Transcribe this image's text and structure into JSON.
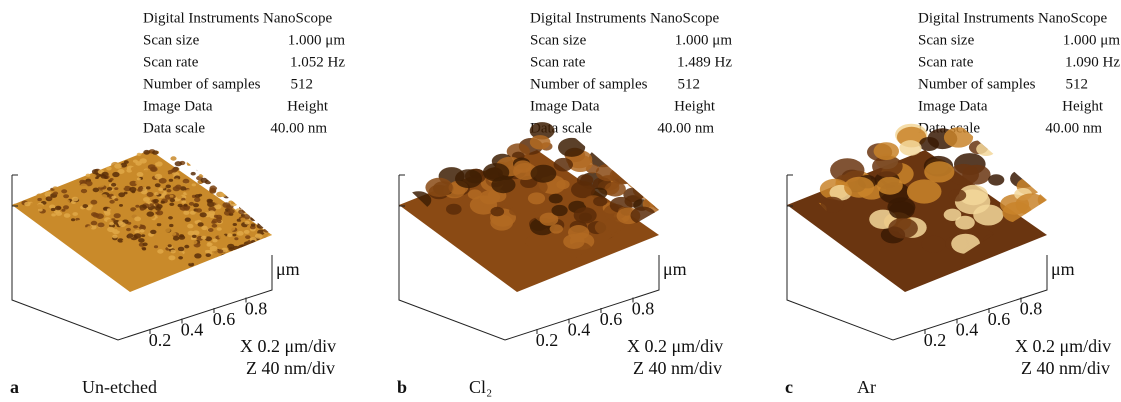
{
  "panels": [
    {
      "letter": "a",
      "caption": "Un-etched",
      "instrument": "Digital Instruments NanoScope",
      "rows": [
        {
          "label": "Scan size",
          "value": "1.000 μm"
        },
        {
          "label": "Scan rate",
          "value": "1.052 Hz"
        },
        {
          "label": "Number of samples",
          "value": "512"
        },
        {
          "label": "Image Data",
          "value": "Height"
        },
        {
          "label": "Data scale",
          "value": "40.00 nm"
        }
      ],
      "axis_ticks": [
        "0.2",
        "0.4",
        "0.6",
        "0.8"
      ],
      "unit": "μm",
      "x_scale": "X 0.2 μm/div",
      "z_scale": "Z  40 nm/div"
    },
    {
      "letter": "b",
      "caption": "Cl₂",
      "instrument": "Digital Instruments NanoScope",
      "rows": [
        {
          "label": "Scan size",
          "value": "1.000 μm"
        },
        {
          "label": "Scan rate",
          "value": "1.489 Hz"
        },
        {
          "label": "Number of samples",
          "value": "512"
        },
        {
          "label": "Image Data",
          "value": "Height"
        },
        {
          "label": "Data scale",
          "value": "40.00 nm"
        }
      ],
      "axis_ticks": [
        "0.2",
        "0.4",
        "0.6",
        "0.8"
      ],
      "unit": "μm",
      "x_scale": "X 0.2 μm/div",
      "z_scale": "Z  40 nm/div"
    },
    {
      "letter": "c",
      "caption": "Ar",
      "instrument": "Digital Instruments NanoScope",
      "rows": [
        {
          "label": "Scan size",
          "value": "1.000 μm"
        },
        {
          "label": "Scan rate",
          "value": "1.090 Hz"
        },
        {
          "label": "Number of samples",
          "value": "512"
        },
        {
          "label": "Image Data",
          "value": "Height"
        },
        {
          "label": "Data scale",
          "value": "40.00 nm"
        }
      ],
      "axis_ticks": [
        "0.2",
        "0.4",
        "0.6",
        "0.8"
      ],
      "unit": "μm",
      "x_scale": "X 0.2 μm/div",
      "z_scale": "Z  40 nm/div"
    }
  ]
}
